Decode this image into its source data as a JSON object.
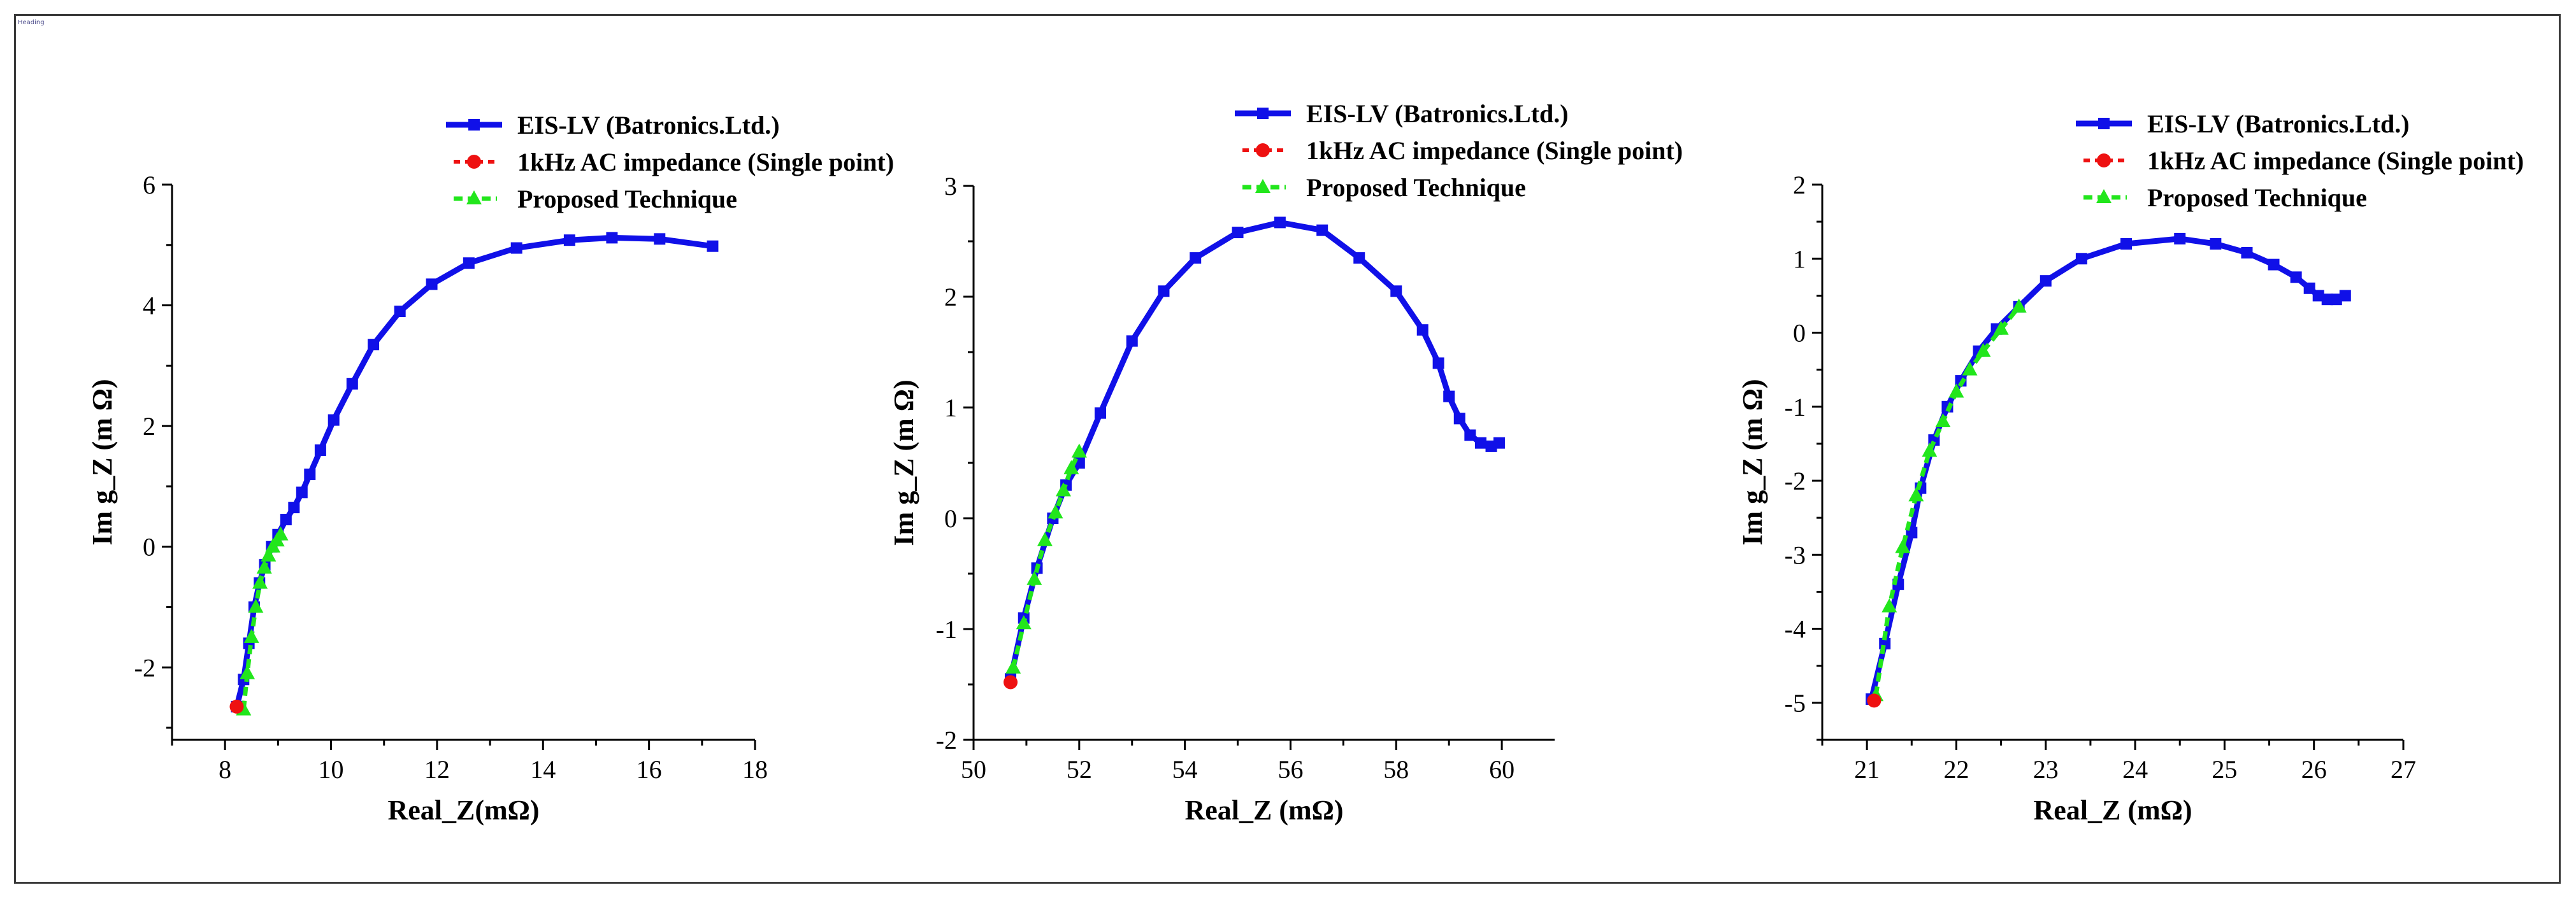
{
  "heading_tag": "Heading",
  "colors": {
    "eis": "#1010e8",
    "ac": "#ee1111",
    "proposed": "#22e61c",
    "axis": "#000000"
  },
  "legend_labels": [
    "EIS-LV (Batronics.Ltd.)",
    "1kHz AC impedance (Single point)",
    "Proposed Technique"
  ],
  "chart_data": [
    {
      "type": "line",
      "xlabel": "Real_Z(mΩ)",
      "ylabel": "Im g_Z (m Ω)",
      "xlim": [
        7,
        18
      ],
      "ylim": [
        -3.2,
        6
      ],
      "xticks": [
        8,
        10,
        12,
        14,
        16,
        18
      ],
      "yticks": [
        -2,
        0,
        2,
        4,
        6
      ],
      "series": [
        {
          "name": "EIS-LV (Batronics.Ltd.)",
          "x": [
            8.22,
            8.35,
            8.45,
            8.55,
            8.65,
            8.75,
            8.88,
            9.0,
            9.15,
            9.3,
            9.45,
            9.6,
            9.8,
            10.05,
            10.4,
            10.8,
            11.3,
            11.9,
            12.6,
            13.5,
            14.5,
            15.3,
            16.2,
            17.2
          ],
          "y": [
            -2.65,
            -2.2,
            -1.6,
            -1.0,
            -0.6,
            -0.3,
            0.0,
            0.2,
            0.45,
            0.65,
            0.9,
            1.2,
            1.6,
            2.1,
            2.7,
            3.35,
            3.9,
            4.35,
            4.7,
            4.95,
            5.08,
            5.12,
            5.1,
            4.98
          ]
        },
        {
          "name": "1kHz AC impedance (Single point)",
          "x": [
            8.22
          ],
          "y": [
            -2.65
          ]
        },
        {
          "name": "Proposed Technique",
          "x": [
            8.35,
            8.42,
            8.5,
            8.58,
            8.66,
            8.74,
            8.82,
            8.9,
            8.98,
            9.05
          ],
          "y": [
            -2.7,
            -2.1,
            -1.5,
            -1.0,
            -0.6,
            -0.35,
            -0.15,
            0.0,
            0.1,
            0.2
          ]
        }
      ]
    },
    {
      "type": "line",
      "xlabel": "Real_Z (mΩ)",
      "ylabel": "Im g_Z (m Ω)",
      "xlim": [
        50,
        61
      ],
      "ylim": [
        -2,
        3
      ],
      "xticks": [
        50,
        52,
        54,
        56,
        58,
        60
      ],
      "yticks": [
        -2,
        -1,
        0,
        1,
        2,
        3
      ],
      "series": [
        {
          "name": "EIS-LV (Batronics.Ltd.)",
          "x": [
            50.7,
            50.95,
            51.2,
            51.5,
            51.75,
            52.0,
            52.4,
            53.0,
            53.6,
            54.2,
            55.0,
            55.8,
            56.6,
            57.3,
            58.0,
            58.5,
            58.8,
            59.0,
            59.2,
            59.4,
            59.6,
            59.8,
            59.95
          ],
          "y": [
            -1.45,
            -0.9,
            -0.45,
            0.0,
            0.3,
            0.5,
            0.95,
            1.6,
            2.05,
            2.35,
            2.58,
            2.67,
            2.6,
            2.35,
            2.05,
            1.7,
            1.4,
            1.1,
            0.9,
            0.75,
            0.68,
            0.65,
            0.68
          ]
        },
        {
          "name": "1kHz AC impedance (Single point)",
          "x": [
            50.7
          ],
          "y": [
            -1.48
          ]
        },
        {
          "name": "Proposed Technique",
          "x": [
            50.75,
            50.95,
            51.15,
            51.35,
            51.55,
            51.7,
            51.85,
            52.0
          ],
          "y": [
            -1.35,
            -0.95,
            -0.55,
            -0.2,
            0.05,
            0.25,
            0.45,
            0.6
          ]
        }
      ]
    },
    {
      "type": "line",
      "xlabel": "Real_Z (mΩ)",
      "ylabel": "Im g_Z (m Ω)",
      "xlim": [
        20.5,
        27
      ],
      "ylim": [
        -5.5,
        2
      ],
      "xticks": [
        21,
        22,
        23,
        24,
        25,
        26,
        27
      ],
      "yticks": [
        -5,
        -4,
        -3,
        -2,
        -1,
        0,
        1,
        2
      ],
      "series": [
        {
          "name": "EIS-LV (Batronics.Ltd.)",
          "x": [
            21.05,
            21.2,
            21.35,
            21.5,
            21.6,
            21.75,
            21.9,
            22.05,
            22.25,
            22.45,
            22.7,
            23.0,
            23.4,
            23.9,
            24.5,
            24.9,
            25.25,
            25.55,
            25.8,
            25.95,
            26.05,
            26.15,
            26.25,
            26.35
          ],
          "y": [
            -4.95,
            -4.2,
            -3.4,
            -2.7,
            -2.1,
            -1.45,
            -1.0,
            -0.65,
            -0.25,
            0.05,
            0.35,
            0.7,
            1.0,
            1.2,
            1.27,
            1.2,
            1.08,
            0.92,
            0.75,
            0.6,
            0.5,
            0.45,
            0.45,
            0.5
          ]
        },
        {
          "name": "1kHz AC impedance (Single point)",
          "x": [
            21.08
          ],
          "y": [
            -4.97
          ]
        },
        {
          "name": "Proposed Technique",
          "x": [
            21.1,
            21.25,
            21.4,
            21.55,
            21.7,
            21.85,
            22.0,
            22.15,
            22.3,
            22.5,
            22.7
          ],
          "y": [
            -4.9,
            -3.7,
            -2.9,
            -2.2,
            -1.6,
            -1.2,
            -0.8,
            -0.5,
            -0.25,
            0.05,
            0.35
          ]
        }
      ]
    }
  ]
}
